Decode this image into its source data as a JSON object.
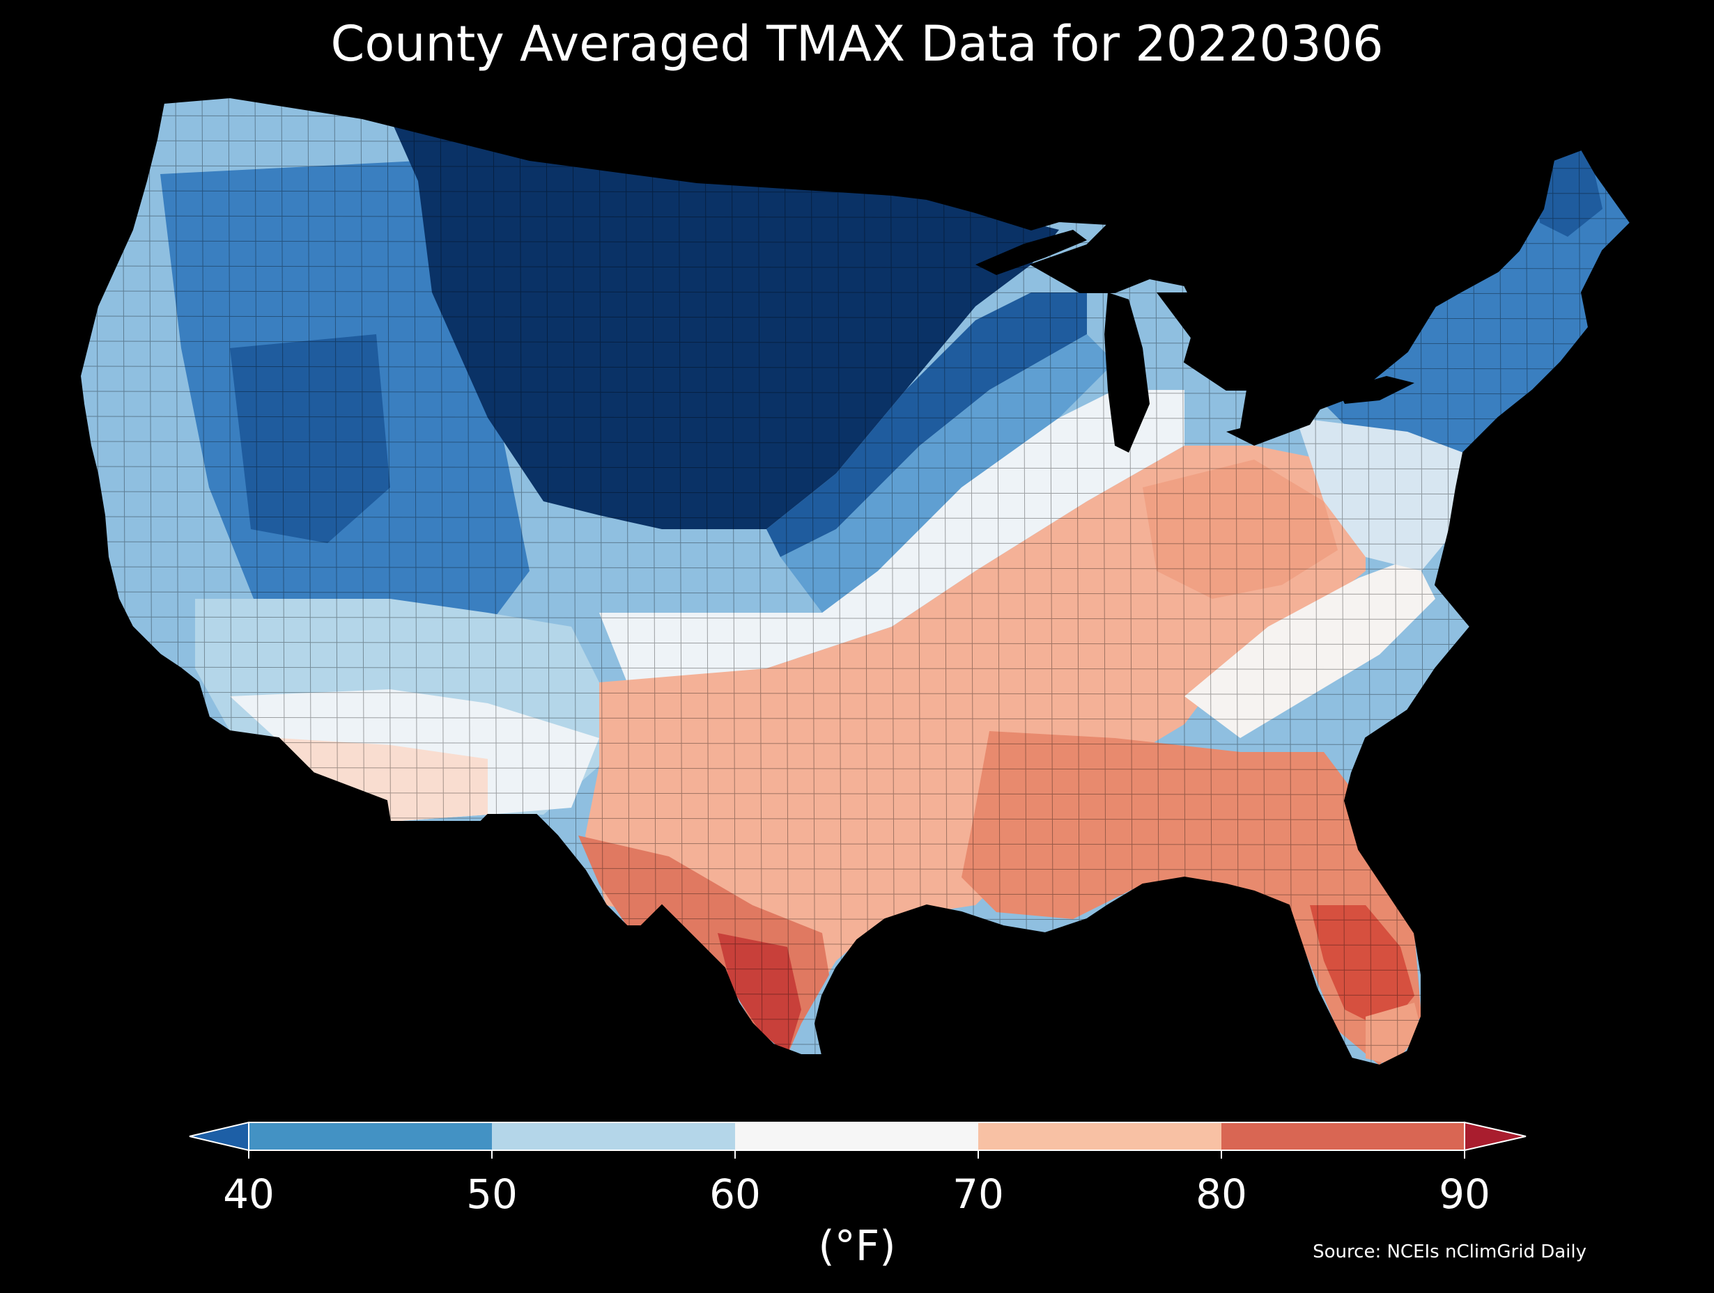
{
  "title": "County Averaged TMAX Data for 20220306",
  "colorbar": {
    "ticks": [
      "40",
      "50",
      "60",
      "70",
      "80",
      "90"
    ],
    "unit": "(°F)",
    "bin_colors": [
      "#4392c4",
      "#b4d6e9",
      "#f6f6f6",
      "#f8c1a4",
      "#d96653"
    ],
    "under_color": "#1d5fa6",
    "over_color": "#a91d2e"
  },
  "source": "Source: NCEIs nClimGrid Daily",
  "map_colors": {
    "very_cold": "#0a3266",
    "cold": "#1f5c9e",
    "cool_mid": "#3a7fc0",
    "cool": "#6aa8d6",
    "light_cool": "#a9cfe6",
    "near_white": "#eef3f7",
    "warm_light": "#f9ddd0",
    "warm": "#f2a287",
    "hot": "#e07961",
    "very_hot": "#c8403a"
  }
}
